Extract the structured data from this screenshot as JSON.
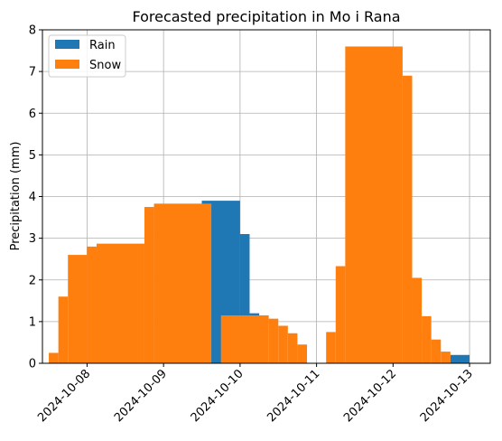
{
  "chart_data": {
    "type": "bar",
    "title": "Forecasted precipitation in Mo i Rana",
    "xlabel": "",
    "ylabel": "Precipitation (mm)",
    "x_axis": "date",
    "xlim": [
      "2024-10-07T10:00",
      "2024-10-13T06:30"
    ],
    "ylim": [
      0,
      8
    ],
    "xticks": [
      "2024-10-08",
      "2024-10-09",
      "2024-10-10",
      "2024-10-11",
      "2024-10-12",
      "2024-10-13"
    ],
    "yticks": [
      0,
      1,
      2,
      3,
      4,
      5,
      6,
      7,
      8
    ],
    "grid": true,
    "legend": "top-left",
    "colors": {
      "Rain": "#1f77b4",
      "Snow": "#ff7f0e"
    },
    "series": [
      {
        "name": "Rain",
        "bars": [
          {
            "start": "2024-10-09T12:00",
            "end": "2024-10-10T00:00",
            "value": 3.9
          },
          {
            "start": "2024-10-10T00:00",
            "end": "2024-10-10T03:00",
            "value": 3.1
          },
          {
            "start": "2024-10-10T03:00",
            "end": "2024-10-10T06:00",
            "value": 1.2
          },
          {
            "start": "2024-10-12T18:00",
            "end": "2024-10-13T00:00",
            "value": 0.2
          }
        ]
      },
      {
        "name": "Snow",
        "bars": [
          {
            "start": "2024-10-07T12:00",
            "end": "2024-10-07T15:00",
            "value": 0.25
          },
          {
            "start": "2024-10-07T15:00",
            "end": "2024-10-07T18:00",
            "value": 1.6
          },
          {
            "start": "2024-10-07T18:00",
            "end": "2024-10-08T00:00",
            "value": 2.6
          },
          {
            "start": "2024-10-08T00:00",
            "end": "2024-10-08T03:00",
            "value": 2.8
          },
          {
            "start": "2024-10-08T03:00",
            "end": "2024-10-08T18:00",
            "value": 2.87
          },
          {
            "start": "2024-10-08T18:00",
            "end": "2024-10-08T21:00",
            "value": 3.75
          },
          {
            "start": "2024-10-08T21:00",
            "end": "2024-10-09T15:00",
            "value": 3.83
          },
          {
            "start": "2024-10-09T18:00",
            "end": "2024-10-10T09:00",
            "value": 1.15
          },
          {
            "start": "2024-10-10T09:00",
            "end": "2024-10-10T12:00",
            "value": 1.07
          },
          {
            "start": "2024-10-10T12:00",
            "end": "2024-10-10T15:00",
            "value": 0.9
          },
          {
            "start": "2024-10-10T15:00",
            "end": "2024-10-10T18:00",
            "value": 0.72
          },
          {
            "start": "2024-10-10T18:00",
            "end": "2024-10-10T21:00",
            "value": 0.45
          },
          {
            "start": "2024-10-11T03:00",
            "end": "2024-10-11T06:00",
            "value": 0.75
          },
          {
            "start": "2024-10-11T06:00",
            "end": "2024-10-11T09:00",
            "value": 2.33
          },
          {
            "start": "2024-10-11T09:00",
            "end": "2024-10-12T03:00",
            "value": 7.6
          },
          {
            "start": "2024-10-12T03:00",
            "end": "2024-10-12T06:00",
            "value": 6.9
          },
          {
            "start": "2024-10-12T06:00",
            "end": "2024-10-12T09:00",
            "value": 2.05
          },
          {
            "start": "2024-10-12T09:00",
            "end": "2024-10-12T12:00",
            "value": 1.13
          },
          {
            "start": "2024-10-12T12:00",
            "end": "2024-10-12T15:00",
            "value": 0.57
          },
          {
            "start": "2024-10-12T15:00",
            "end": "2024-10-12T18:00",
            "value": 0.28
          }
        ]
      }
    ]
  }
}
